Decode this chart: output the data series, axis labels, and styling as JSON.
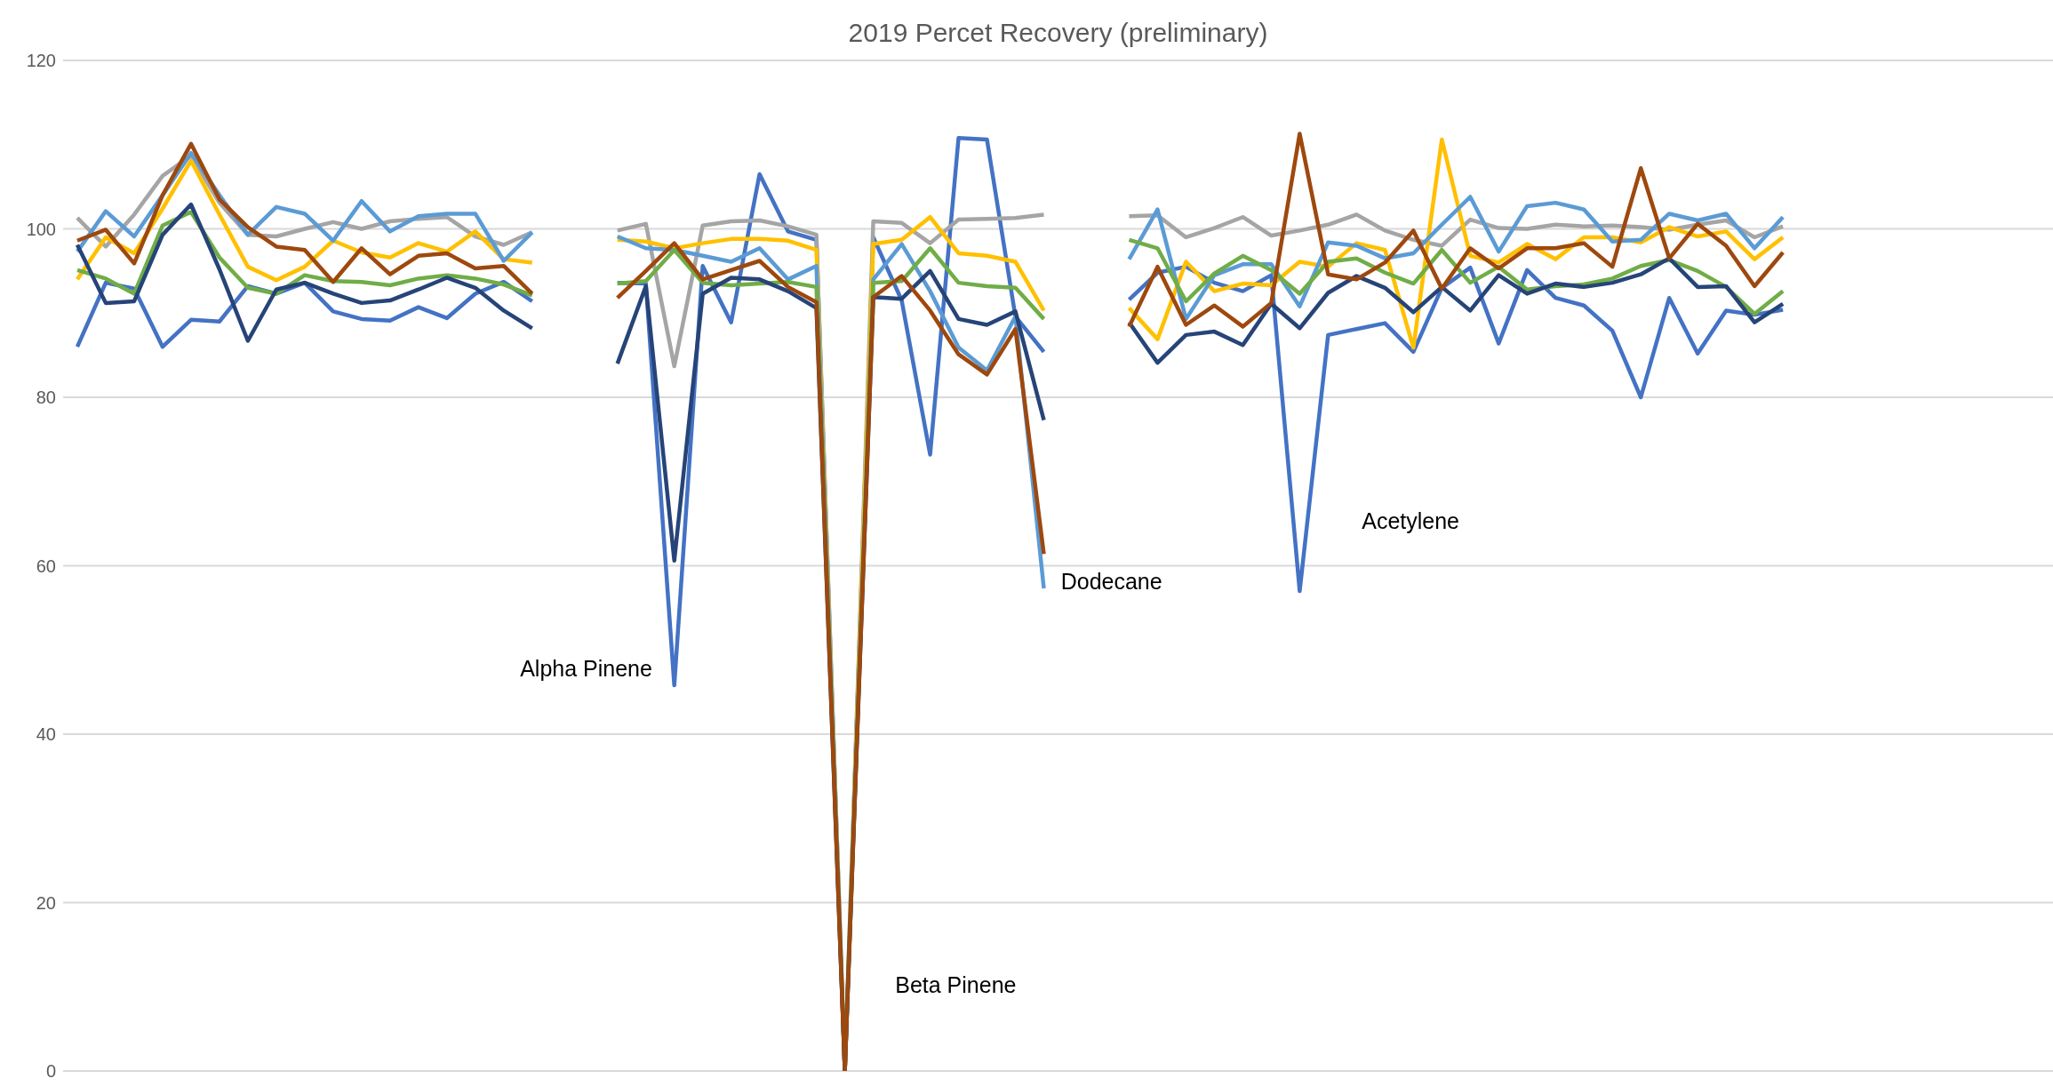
{
  "chart_data": {
    "type": "line",
    "title": "2019 Percet Recovery (preliminary)",
    "categories": [
      null,
      null,
      null,
      null,
      null,
      null,
      null,
      null,
      null,
      null,
      null,
      null,
      null,
      null,
      null,
      null,
      null,
      null,
      null,
      null,
      null,
      null,
      null,
      null,
      null,
      null,
      null,
      null,
      null,
      null,
      null,
      null,
      null,
      null,
      null,
      null,
      null,
      null,
      null,
      null,
      null,
      null,
      null,
      null,
      null,
      null,
      null,
      null,
      null,
      null,
      null,
      null,
      null,
      null,
      null,
      null,
      null,
      null,
      null,
      null,
      null,
      null,
      null,
      null,
      null,
      null,
      null,
      null,
      null,
      null
    ],
    "series": [
      {
        "color": "#4472c4",
        "values": [
          86.0,
          93.6,
          92.9,
          86.0,
          89.2,
          89.0,
          93.2,
          92.3,
          93.6,
          90.2,
          89.3,
          89.1,
          90.7,
          89.4,
          92.3,
          93.7,
          91.4,
          null,
          null,
          93.6,
          93.5,
          45.8,
          95.6,
          88.9,
          106.5,
          99.7,
          98.7,
          0,
          99.0,
          91.5,
          73.2,
          110.8,
          110.6,
          89.6,
          85.4,
          null,
          null,
          91.6,
          94.8,
          95.5,
          93.6,
          92.6,
          94.5,
          57.0,
          87.4,
          88.1,
          88.8,
          85.4,
          93.0,
          95.4,
          86.4,
          95.1,
          91.8,
          90.9,
          87.9,
          80.0,
          91.8,
          85.2,
          90.3,
          89.8,
          90.4,
          null,
          null,
          null,
          null,
          null,
          null,
          null,
          null,
          null
        ]
      },
      {
        "color": "#a5a5a5",
        "values": [
          101.3,
          97.9,
          101.7,
          106.3,
          108.7,
          103.1,
          99.3,
          99.1,
          100.0,
          100.8,
          100.0,
          100.9,
          101.2,
          101.4,
          99.1,
          98.1,
          99.6,
          null,
          null,
          99.8,
          100.6,
          83.7,
          100.4,
          100.9,
          101.0,
          100.3,
          99.3,
          0,
          100.9,
          100.7,
          98.3,
          101.1,
          101.2,
          101.3,
          101.7,
          null,
          null,
          101.5,
          101.6,
          99.0,
          100.1,
          101.4,
          99.2,
          99.8,
          100.5,
          101.7,
          99.8,
          98.7,
          98.0,
          101.1,
          100.1,
          100.0,
          100.5,
          100.3,
          100.4,
          100.2,
          99.9,
          100.5,
          101.0,
          99.0,
          100.3,
          null,
          null,
          null,
          null,
          null,
          null,
          null,
          null,
          null
        ]
      },
      {
        "color": "#ffc000",
        "values": [
          94.0,
          99.0,
          97.1,
          102.4,
          108.1,
          101.7,
          95.5,
          93.9,
          95.5,
          98.6,
          97.2,
          96.6,
          98.3,
          97.3,
          99.7,
          96.4,
          96.0,
          null,
          null,
          98.7,
          98.5,
          97.7,
          98.3,
          98.8,
          98.8,
          98.6,
          97.5,
          0,
          98.2,
          98.7,
          101.4,
          97.1,
          96.8,
          96.1,
          90.3,
          null,
          null,
          90.6,
          86.9,
          96.1,
          92.6,
          93.5,
          93.3,
          96.1,
          95.5,
          98.3,
          97.5,
          85.9,
          110.6,
          96.8,
          96.0,
          98.2,
          96.4,
          99.0,
          99.0,
          98.4,
          100.2,
          99.1,
          99.7,
          96.4,
          99.0,
          null,
          null,
          null,
          null,
          null,
          null,
          null,
          null,
          null
        ]
      },
      {
        "color": "#5b9bd5",
        "values": [
          97.3,
          102.1,
          99.1,
          104.0,
          109.0,
          104.0,
          99.3,
          102.6,
          101.8,
          98.6,
          103.3,
          99.7,
          101.5,
          101.8,
          101.8,
          96.2,
          99.6,
          null,
          null,
          99.1,
          97.7,
          97.5,
          96.8,
          96.1,
          97.7,
          94.0,
          95.6,
          0,
          94.0,
          98.2,
          92.6,
          85.9,
          83.2,
          89.6,
          57.3,
          null,
          null,
          96.4,
          102.3,
          89.3,
          94.5,
          95.8,
          95.8,
          90.8,
          98.4,
          98.0,
          96.5,
          97.1,
          100.5,
          103.8,
          97.3,
          102.7,
          103.1,
          102.3,
          98.5,
          98.7,
          101.8,
          101.0,
          101.8,
          97.7,
          101.4,
          null,
          null,
          null,
          null,
          null,
          null,
          null,
          null,
          null
        ]
      },
      {
        "color": "#70ad47",
        "values": [
          95.1,
          94.1,
          92.3,
          100.4,
          102.0,
          96.6,
          93.0,
          92.3,
          94.5,
          93.8,
          93.7,
          93.3,
          94.1,
          94.5,
          94.1,
          93.4,
          92.1,
          null,
          null,
          93.5,
          93.8,
          97.5,
          93.6,
          93.3,
          93.5,
          93.7,
          93.1,
          0,
          93.6,
          93.8,
          97.7,
          93.6,
          93.2,
          93.0,
          89.3,
          null,
          null,
          98.7,
          97.7,
          91.4,
          94.7,
          96.8,
          95.1,
          92.3,
          96.1,
          96.5,
          94.8,
          93.5,
          97.5,
          93.6,
          95.5,
          92.8,
          93.2,
          93.4,
          94.1,
          95.6,
          96.3,
          95.0,
          93.1,
          89.9,
          92.6,
          null,
          null,
          null,
          null,
          null,
          null,
          null,
          null,
          null
        ]
      },
      {
        "color": "#264478",
        "values": [
          98.1,
          91.2,
          91.4,
          99.3,
          102.9,
          95.2,
          86.7,
          92.8,
          93.6,
          92.3,
          91.2,
          91.5,
          92.8,
          94.2,
          93.0,
          90.3,
          88.2,
          null,
          null,
          84.0,
          93.2,
          60.6,
          92.3,
          94.2,
          94.0,
          92.6,
          90.6,
          0,
          91.9,
          91.7,
          95.0,
          89.3,
          88.6,
          90.2,
          77.3,
          null,
          null,
          88.9,
          84.1,
          87.4,
          87.8,
          86.2,
          91.1,
          88.2,
          92.4,
          94.4,
          93.0,
          90.1,
          93.1,
          90.3,
          94.5,
          92.3,
          93.5,
          93.1,
          93.6,
          94.6,
          96.5,
          93.1,
          93.2,
          88.9,
          91.1,
          null,
          null,
          null,
          null,
          null,
          null,
          null,
          null,
          null
        ]
      },
      {
        "color": "#9e480e",
        "values": [
          98.6,
          99.9,
          95.9,
          104.0,
          110.1,
          103.5,
          100.2,
          97.9,
          97.5,
          93.7,
          97.7,
          94.6,
          96.8,
          97.1,
          95.3,
          95.6,
          92.3,
          null,
          null,
          91.8,
          95.0,
          98.3,
          94.0,
          95.1,
          96.2,
          93.1,
          91.3,
          0,
          91.9,
          94.4,
          90.3,
          85.1,
          82.7,
          88.1,
          61.4,
          null,
          null,
          88.4,
          95.5,
          88.6,
          90.9,
          88.4,
          91.2,
          111.3,
          94.6,
          94.0,
          96.0,
          99.8,
          92.9,
          97.7,
          95.3,
          97.7,
          97.7,
          98.3,
          95.5,
          107.2,
          96.5,
          100.6,
          98.0,
          93.2,
          97.2,
          null,
          null,
          null,
          null,
          null,
          null,
          null,
          null,
          null
        ]
      }
    ],
    "ylim": [
      0,
      120
    ],
    "yticks": [
      0,
      20,
      40,
      60,
      80,
      100,
      120
    ],
    "grid": "y",
    "legend": false,
    "tick_labels": "y",
    "line_style": "solid",
    "annotations": [
      "Alpha Pinene",
      "Beta Pinene",
      "Dodecane",
      "Acetylene"
    ]
  }
}
